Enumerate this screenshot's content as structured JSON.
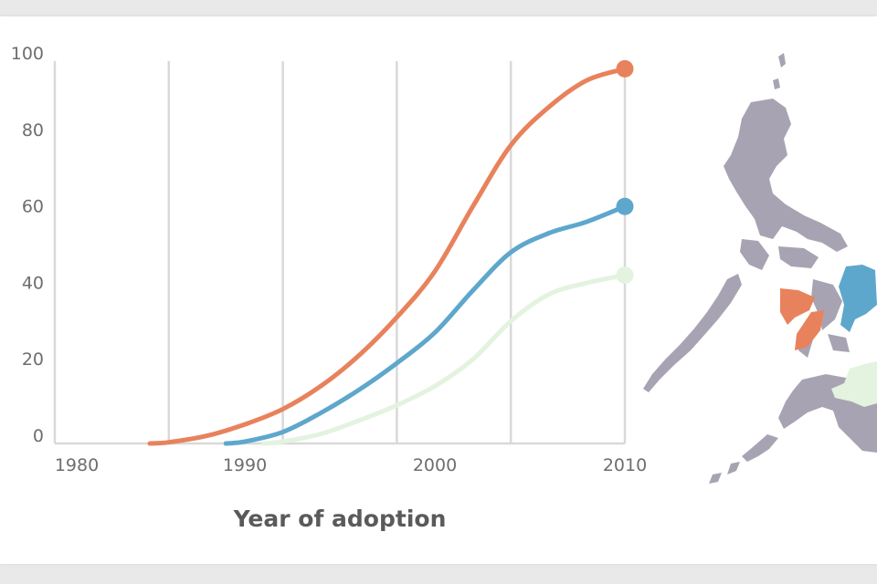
{
  "chart_data": {
    "type": "line",
    "title": "",
    "xlabel": "Year of adoption",
    "ylabel": "",
    "xlim": [
      1980,
      2010
    ],
    "ylim": [
      0,
      100
    ],
    "x_ticks": [
      "1980",
      "1990",
      "2000",
      "2010"
    ],
    "y_ticks": [
      "0",
      "20",
      "40",
      "60",
      "80",
      "100"
    ],
    "gridlines_x": [
      1980,
      1986,
      1992,
      1998,
      2004,
      2010
    ],
    "series": [
      {
        "name": "orange",
        "color": "#e8825c",
        "points": [
          [
            1985,
            0
          ],
          [
            1986,
            0.3
          ],
          [
            1988,
            2
          ],
          [
            1990,
            5
          ],
          [
            1992,
            9
          ],
          [
            1994,
            15
          ],
          [
            1996,
            23
          ],
          [
            1998,
            33
          ],
          [
            2000,
            45
          ],
          [
            2002,
            62
          ],
          [
            2004,
            78
          ],
          [
            2006,
            88
          ],
          [
            2008,
            95
          ],
          [
            2010,
            98
          ]
        ]
      },
      {
        "name": "blue",
        "color": "#5ea7cc",
        "points": [
          [
            1989,
            0
          ],
          [
            1990,
            0.5
          ],
          [
            1992,
            3
          ],
          [
            1994,
            8
          ],
          [
            1996,
            14
          ],
          [
            1998,
            21
          ],
          [
            2000,
            29
          ],
          [
            2002,
            40
          ],
          [
            2004,
            50
          ],
          [
            2006,
            55
          ],
          [
            2008,
            58
          ],
          [
            2010,
            62
          ]
        ]
      },
      {
        "name": "light-green",
        "color": "#e3f3df",
        "points": [
          [
            1991,
            0
          ],
          [
            1992,
            0.5
          ],
          [
            1994,
            2.5
          ],
          [
            1996,
            6
          ],
          [
            1998,
            10
          ],
          [
            2000,
            15
          ],
          [
            2002,
            22
          ],
          [
            2004,
            32
          ],
          [
            2006,
            39
          ],
          [
            2008,
            42
          ],
          [
            2010,
            44
          ]
        ]
      }
    ]
  },
  "map": {
    "fill_default": "#a8a3b2",
    "highlights": [
      "#e8825c",
      "#5ea7cc",
      "#e3f3df"
    ]
  }
}
